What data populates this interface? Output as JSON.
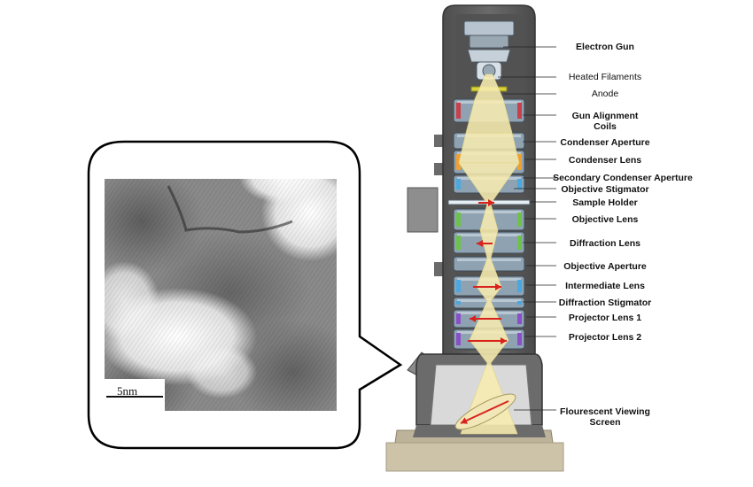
{
  "micrograph": {
    "scale_bar_label": "5nm"
  },
  "labels": [
    {
      "id": "electron-gun",
      "text": "Electron Gun"
    },
    {
      "id": "heated-filaments",
      "text": "Heated Filaments"
    },
    {
      "id": "anode",
      "text": "Anode"
    },
    {
      "id": "gun-alignment-coils",
      "text": "Gun Alignment\nCoils"
    },
    {
      "id": "condenser-aperture",
      "text": "Condenser Aperture"
    },
    {
      "id": "condenser-lens",
      "text": "Condenser Lens"
    },
    {
      "id": "secondary-condenser-aperture",
      "text": "Secondary Condenser Aperture"
    },
    {
      "id": "objective-stigmator",
      "text": "Objective Stigmator"
    },
    {
      "id": "sample-holder",
      "text": "Sample Holder"
    },
    {
      "id": "objective-lens",
      "text": "Objective Lens"
    },
    {
      "id": "diffraction-lens",
      "text": "Diffraction Lens"
    },
    {
      "id": "objective-aperture",
      "text": "Objective Aperture"
    },
    {
      "id": "intermediate-lens",
      "text": "Intermediate Lens"
    },
    {
      "id": "diffraction-stigmator",
      "text": "Diffraction Stigmator"
    },
    {
      "id": "projector-lens-1",
      "text": "Projector Lens 1"
    },
    {
      "id": "projector-lens-2",
      "text": "Projector Lens 2"
    },
    {
      "id": "flourescent-viewing-screen",
      "text": "Flourescent Viewing\nScreen"
    }
  ],
  "colors": {
    "column_body": "#5f5f5f",
    "column_outline": "#3c3c3c",
    "base": "#cdc3a8",
    "beam": "#f7ecb0",
    "arrow": "#d9221c",
    "lens_green": "#6dc24a",
    "lens_orange": "#f0a030",
    "lens_blue": "#49a8e0",
    "lens_purple": "#8a4fc8",
    "anode_yellow": "#d8d23a"
  }
}
